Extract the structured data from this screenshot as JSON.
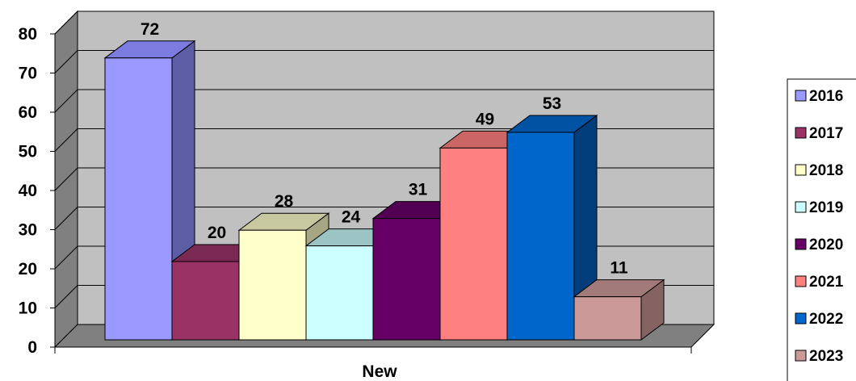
{
  "chart_data": {
    "type": "bar",
    "x_category": "New",
    "xlabel": "New",
    "ylim": [
      0,
      80
    ],
    "yticks": [
      "0",
      "10",
      "20",
      "30",
      "40",
      "50",
      "60",
      "70",
      "80"
    ],
    "grid": true,
    "three_d": true,
    "legend_position": "right",
    "series": [
      {
        "name": "2016",
        "values": [
          72
        ],
        "label": "72",
        "color": "#9999ff",
        "side": "#5e5ea6",
        "top": "#7b7be0"
      },
      {
        "name": "2017",
        "values": [
          20
        ],
        "label": "20",
        "color": "#993366",
        "side": "#5c1f3d",
        "top": "#7a2952"
      },
      {
        "name": "2018",
        "values": [
          28
        ],
        "label": "28",
        "color": "#ffffcc",
        "side": "#a6a685",
        "top": "#c8c8a0"
      },
      {
        "name": "2019",
        "values": [
          24
        ],
        "label": "24",
        "color": "#ccffff",
        "side": "#85a6a6",
        "top": "#9cc4c4"
      },
      {
        "name": "2020",
        "values": [
          31
        ],
        "label": "31",
        "color": "#660066",
        "side": "#3d003d",
        "top": "#520052"
      },
      {
        "name": "2021",
        "values": [
          49
        ],
        "label": "49",
        "color": "#ff8080",
        "side": "#a65353",
        "top": "#cc6666"
      },
      {
        "name": "2022",
        "values": [
          53
        ],
        "label": "53",
        "color": "#0066cc",
        "side": "#003d7a",
        "top": "#0052a3"
      },
      {
        "name": "2023",
        "values": [
          11
        ],
        "label": "11",
        "color": "#cc9999",
        "side": "#856363",
        "top": "#a37a7a"
      }
    ],
    "colors": {
      "back_wall": "#c0c0c0",
      "side_wall": "#808080",
      "floor": "#808080",
      "gridline": "#000000"
    }
  }
}
